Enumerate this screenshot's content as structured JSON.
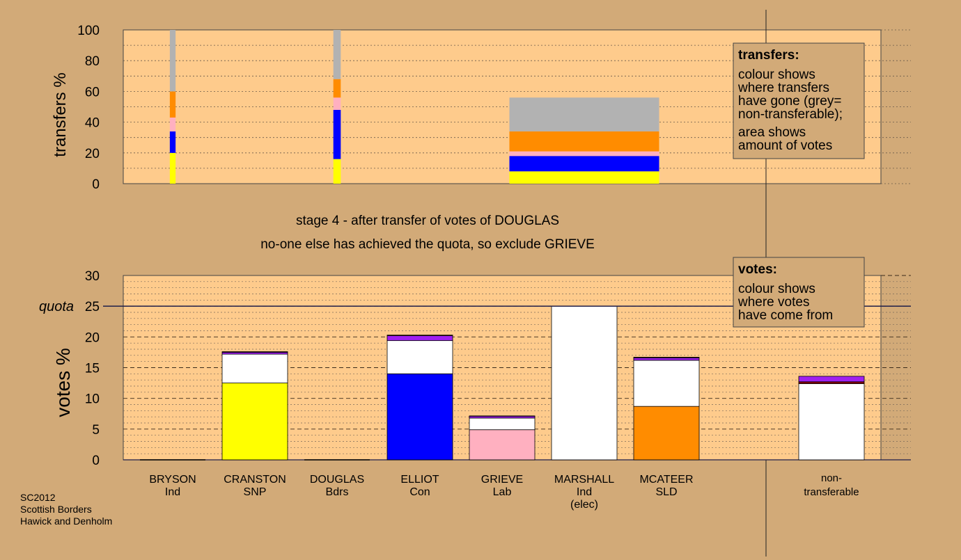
{
  "colors": {
    "page_bg": "#d2aa78",
    "plot_bg": "#fecb8c",
    "non_transferable": "#b2b2b2",
    "quota_line": "#1e1e4a",
    "party_colors": {
      "BRYSON": "#a020f0",
      "CRANSTON": "#ffff00",
      "DOUGLAS": "#8b0000",
      "ELLIOT": "#0000ff",
      "GRIEVE": "#ffb0c0",
      "MARSHALL": "#ffffff",
      "MCATEER": "#ff8c00"
    }
  },
  "texts": {
    "stage_line": "stage 4 - after transfer of votes of DOUGLAS",
    "note_line": "no-one else has achieved the quota, so exclude GRIEVE",
    "quota_label": "quota",
    "footer": [
      "SC2012",
      "Scottish Borders",
      "Hawick and Denholm"
    ]
  },
  "legends": {
    "transfers": {
      "title": "transfers:",
      "lines": [
        "colour shows",
        "where transfers",
        "have gone (grey=",
        "non-transferable);",
        "area shows",
        "amount of votes"
      ]
    },
    "votes": {
      "title": "votes:",
      "lines": [
        "colour shows",
        "where votes",
        "have come from"
      ]
    }
  },
  "chart_data": [
    {
      "type": "bar",
      "subtype": "stacked-transfer",
      "ylabel": "transfers %",
      "ylim": [
        0,
        100
      ],
      "yticks": [
        0,
        20,
        40,
        60,
        80,
        100
      ],
      "transfers": [
        {
          "from": "BRYSON",
          "width_votes": 0.35,
          "segments": [
            {
              "to": "CRANSTON",
              "value": 20
            },
            {
              "to": "ELLIOT",
              "value": 14
            },
            {
              "to": "GRIEVE",
              "value": 9
            },
            {
              "to": "MCATEER",
              "value": 17
            },
            {
              "to": "non-transferable",
              "value": 40
            }
          ]
        },
        {
          "from": "DOUGLAS",
          "width_votes": 0.45,
          "segments": [
            {
              "to": "CRANSTON",
              "value": 16
            },
            {
              "to": "ELLIOT",
              "value": 32
            },
            {
              "to": "GRIEVE",
              "value": 8
            },
            {
              "to": "MCATEER",
              "value": 12
            },
            {
              "to": "non-transferable",
              "value": 32
            }
          ]
        },
        {
          "from": "MARSHALL",
          "width_votes": 9.1,
          "segments": [
            {
              "to": "CRANSTON",
              "value": 8
            },
            {
              "to": "ELLIOT",
              "value": 10
            },
            {
              "to": "GRIEVE",
              "value": 3
            },
            {
              "to": "MCATEER",
              "value": 13
            },
            {
              "to": "non-transferable",
              "value": 22
            }
          ]
        }
      ]
    },
    {
      "type": "bar",
      "subtype": "stacked",
      "ylabel": "votes %",
      "ylim": [
        0,
        30
      ],
      "yticks": [
        0,
        5,
        10,
        15,
        20,
        25,
        30
      ],
      "quota": 25,
      "categories": [
        {
          "name": "BRYSON",
          "party": "Ind",
          "extra": ""
        },
        {
          "name": "CRANSTON",
          "party": "SNP",
          "extra": ""
        },
        {
          "name": "DOUGLAS",
          "party": "Bdrs",
          "extra": ""
        },
        {
          "name": "ELLIOT",
          "party": "Con",
          "extra": ""
        },
        {
          "name": "GRIEVE",
          "party": "Lab",
          "extra": ""
        },
        {
          "name": "MARSHALL",
          "party": "Ind",
          "extra": "(elec)"
        },
        {
          "name": "MCATEER",
          "party": "SLD",
          "extra": ""
        }
      ],
      "nontransferable_label": [
        "non-",
        "transferable"
      ],
      "bars": [
        {
          "candidate": "BRYSON",
          "segments": []
        },
        {
          "candidate": "CRANSTON",
          "segments": [
            {
              "from": "CRANSTON",
              "value": 12.5
            },
            {
              "from": "MARSHALL",
              "value": 4.7
            },
            {
              "from": "BRYSON",
              "value": 0.3
            },
            {
              "from": "DOUGLAS",
              "value": 0.1
            }
          ]
        },
        {
          "candidate": "DOUGLAS",
          "segments": []
        },
        {
          "candidate": "ELLIOT",
          "segments": [
            {
              "from": "ELLIOT",
              "value": 14.0
            },
            {
              "from": "MARSHALL",
              "value": 5.4
            },
            {
              "from": "BRYSON",
              "value": 0.8
            },
            {
              "from": "DOUGLAS",
              "value": 0.1
            }
          ]
        },
        {
          "candidate": "GRIEVE",
          "segments": [
            {
              "from": "GRIEVE",
              "value": 4.9
            },
            {
              "from": "MARSHALL",
              "value": 1.9
            },
            {
              "from": "BRYSON",
              "value": 0.3
            },
            {
              "from": "DOUGLAS",
              "value": 0.05
            }
          ]
        },
        {
          "candidate": "MARSHALL",
          "segments": [
            {
              "from": "MARSHALL",
              "value": 25.0
            }
          ]
        },
        {
          "candidate": "MCATEER",
          "segments": [
            {
              "from": "MCATEER",
              "value": 8.7
            },
            {
              "from": "MARSHALL",
              "value": 7.5
            },
            {
              "from": "BRYSON",
              "value": 0.4
            },
            {
              "from": "DOUGLAS",
              "value": 0.1
            }
          ]
        }
      ],
      "nontransferable": [
        {
          "from": "MARSHALL",
          "value": 12.4
        },
        {
          "from": "DOUGLAS",
          "value": 0.3
        },
        {
          "from": "BRYSON",
          "value": 0.9
        }
      ]
    }
  ]
}
